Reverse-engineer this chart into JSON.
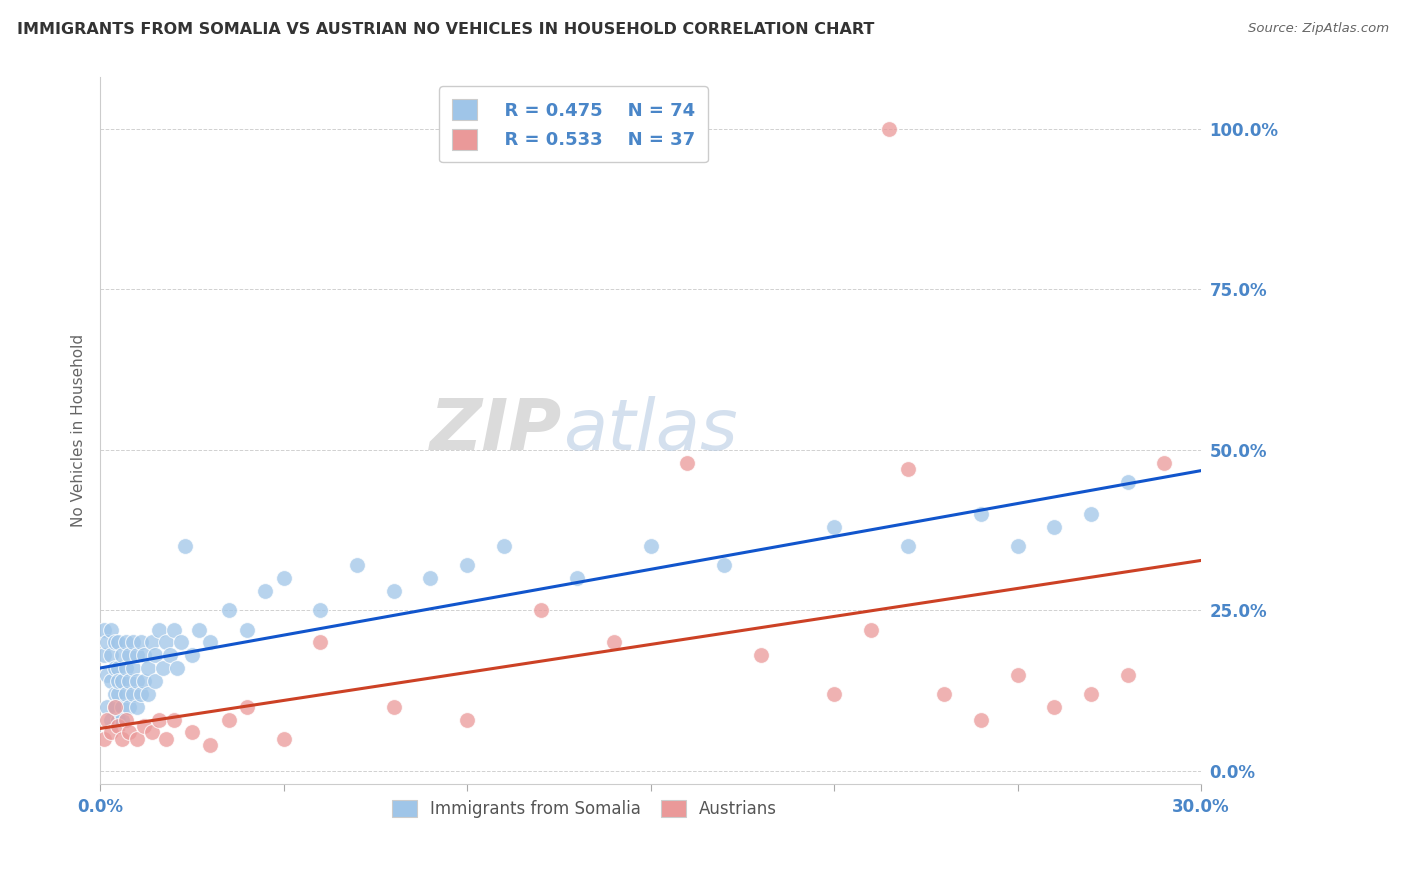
{
  "title": "IMMIGRANTS FROM SOMALIA VS AUSTRIAN NO VEHICLES IN HOUSEHOLD CORRELATION CHART",
  "ylabel": "No Vehicles in Household",
  "source": "Source: ZipAtlas.com",
  "xlim": [
    0.0,
    0.3
  ],
  "ylim": [
    -0.02,
    1.08
  ],
  "ytick_labels": [
    "0.0%",
    "25.0%",
    "50.0%",
    "75.0%",
    "100.0%"
  ],
  "ytick_values": [
    0.0,
    0.25,
    0.5,
    0.75,
    1.0
  ],
  "xtick_values": [
    0.0,
    0.05,
    0.1,
    0.15,
    0.2,
    0.25,
    0.3
  ],
  "xtick_labels": [
    "0.0%",
    "",
    "",
    "",
    "",
    "",
    "30.0%"
  ],
  "legend_somalia_label": "Immigrants from Somalia",
  "legend_austrians_label": "Austrians",
  "legend_r_somalia": "R = 0.475",
  "legend_n_somalia": "N = 74",
  "legend_r_austrians": "R = 0.533",
  "legend_n_austrians": "N = 37",
  "color_somalia": "#9fc5e8",
  "color_austrians": "#ea9999",
  "color_somalia_line": "#1155cc",
  "color_austrians_line": "#cc4125",
  "color_axis_labels": "#4a86c8",
  "color_title": "#333333",
  "watermark_zip": "ZIP",
  "watermark_atlas": "atlas",
  "somalia_x": [
    0.001,
    0.001,
    0.002,
    0.002,
    0.002,
    0.003,
    0.003,
    0.003,
    0.003,
    0.004,
    0.004,
    0.004,
    0.004,
    0.005,
    0.005,
    0.005,
    0.005,
    0.005,
    0.006,
    0.006,
    0.006,
    0.006,
    0.007,
    0.007,
    0.007,
    0.008,
    0.008,
    0.008,
    0.009,
    0.009,
    0.009,
    0.01,
    0.01,
    0.01,
    0.011,
    0.011,
    0.012,
    0.012,
    0.013,
    0.013,
    0.014,
    0.015,
    0.015,
    0.016,
    0.017,
    0.018,
    0.019,
    0.02,
    0.021,
    0.022,
    0.023,
    0.025,
    0.027,
    0.03,
    0.035,
    0.04,
    0.045,
    0.05,
    0.06,
    0.07,
    0.08,
    0.09,
    0.1,
    0.11,
    0.13,
    0.15,
    0.17,
    0.2,
    0.22,
    0.24,
    0.25,
    0.26,
    0.27,
    0.28
  ],
  "somalia_y": [
    0.18,
    0.22,
    0.15,
    0.2,
    0.1,
    0.14,
    0.18,
    0.22,
    0.08,
    0.12,
    0.16,
    0.2,
    0.1,
    0.08,
    0.12,
    0.16,
    0.2,
    0.14,
    0.1,
    0.14,
    0.18,
    0.08,
    0.12,
    0.16,
    0.2,
    0.1,
    0.14,
    0.18,
    0.12,
    0.16,
    0.2,
    0.1,
    0.14,
    0.18,
    0.12,
    0.2,
    0.14,
    0.18,
    0.12,
    0.16,
    0.2,
    0.14,
    0.18,
    0.22,
    0.16,
    0.2,
    0.18,
    0.22,
    0.16,
    0.2,
    0.35,
    0.18,
    0.22,
    0.2,
    0.25,
    0.22,
    0.28,
    0.3,
    0.25,
    0.32,
    0.28,
    0.3,
    0.32,
    0.35,
    0.3,
    0.35,
    0.32,
    0.38,
    0.35,
    0.4,
    0.35,
    0.38,
    0.4,
    0.45
  ],
  "austrians_x": [
    0.001,
    0.002,
    0.003,
    0.004,
    0.005,
    0.006,
    0.007,
    0.008,
    0.01,
    0.012,
    0.014,
    0.016,
    0.018,
    0.02,
    0.025,
    0.03,
    0.035,
    0.04,
    0.05,
    0.06,
    0.08,
    0.1,
    0.12,
    0.14,
    0.16,
    0.18,
    0.2,
    0.21,
    0.215,
    0.22,
    0.23,
    0.24,
    0.25,
    0.26,
    0.27,
    0.28,
    0.29
  ],
  "austrians_y": [
    0.05,
    0.08,
    0.06,
    0.1,
    0.07,
    0.05,
    0.08,
    0.06,
    0.05,
    0.07,
    0.06,
    0.08,
    0.05,
    0.08,
    0.06,
    0.04,
    0.08,
    0.1,
    0.05,
    0.2,
    0.1,
    0.08,
    0.25,
    0.2,
    0.48,
    0.18,
    0.12,
    0.22,
    1.0,
    0.47,
    0.12,
    0.08,
    0.15,
    0.1,
    0.12,
    0.15,
    0.48
  ]
}
